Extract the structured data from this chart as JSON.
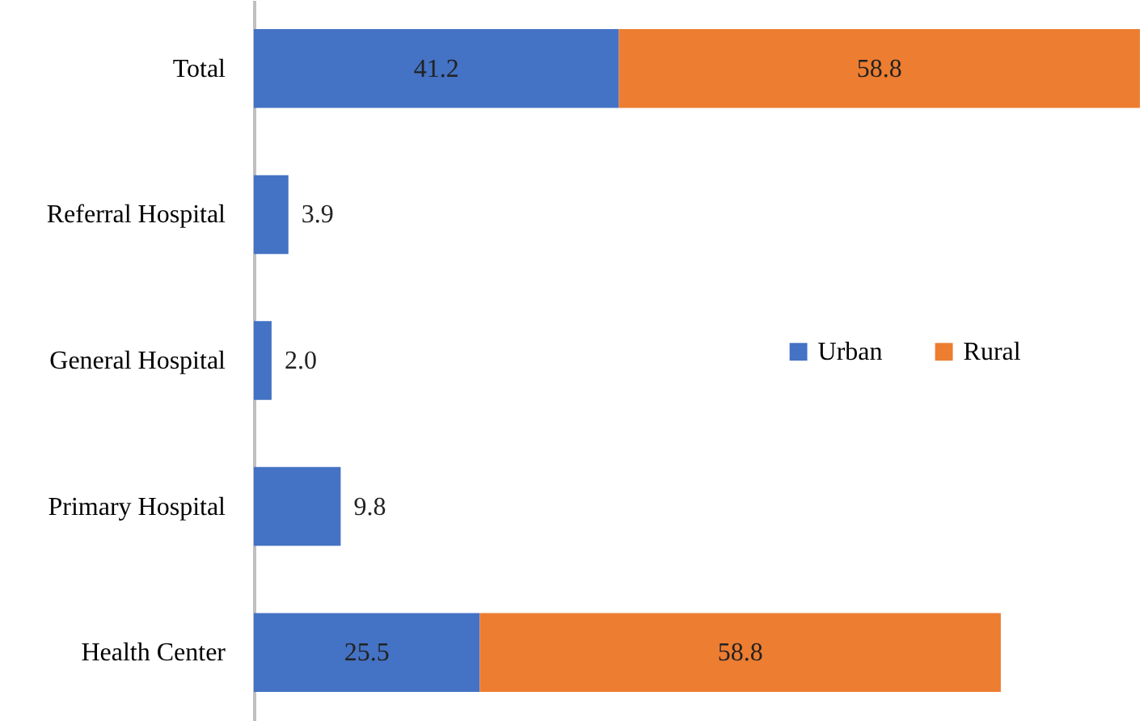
{
  "chart_data": {
    "type": "bar",
    "orientation": "horizontal",
    "stacked": true,
    "legend": "right",
    "grid": false,
    "categories": [
      "Total",
      "Referral Hospital",
      "General Hospital",
      "Primary Hospital",
      "Health Center"
    ],
    "series": [
      {
        "name": "Urban",
        "color": "#4472c4",
        "values": [
          41.2,
          3.9,
          2.0,
          9.8,
          25.5
        ],
        "value_labels": [
          "41.2",
          "3.9",
          "2.0",
          "9.8",
          "25.5"
        ]
      },
      {
        "name": "Rural",
        "color": "#ed7d31",
        "values": [
          58.8,
          null,
          null,
          null,
          58.8
        ],
        "value_labels": [
          "58.8",
          null,
          null,
          null,
          "58.8"
        ]
      }
    ]
  }
}
